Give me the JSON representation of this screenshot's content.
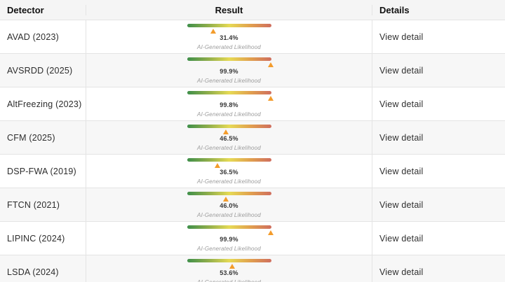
{
  "table": {
    "columns": [
      {
        "key": "detector",
        "label": "Detector"
      },
      {
        "key": "result",
        "label": "Result"
      },
      {
        "key": "details",
        "label": "Details"
      }
    ],
    "result_caption": "AI-Generated Likelihood",
    "details_link_label": "View detail",
    "rows": [
      {
        "detector": "AVAD (2023)",
        "likelihood_pct": 31.4,
        "likelihood_label": "31.4%"
      },
      {
        "detector": "AVSRDD (2025)",
        "likelihood_pct": 99.9,
        "likelihood_label": "99.9%"
      },
      {
        "detector": "AltFreezing (2023)",
        "likelihood_pct": 99.8,
        "likelihood_label": "99.8%"
      },
      {
        "detector": "CFM (2025)",
        "likelihood_pct": 46.5,
        "likelihood_label": "46.5%"
      },
      {
        "detector": "DSP-FWA (2019)",
        "likelihood_pct": 36.5,
        "likelihood_label": "36.5%"
      },
      {
        "detector": "FTCN (2021)",
        "likelihood_pct": 46.0,
        "likelihood_label": "46.0%"
      },
      {
        "detector": "LIPINC (2024)",
        "likelihood_pct": 99.9,
        "likelihood_label": "99.9%"
      },
      {
        "detector": "LSDA (2024)",
        "likelihood_pct": 53.6,
        "likelihood_label": "53.6%"
      }
    ]
  },
  "colors": {
    "bar_gradient": [
      "#3f8f4a",
      "#8fae4b",
      "#e6da55",
      "#e1a04e",
      "#cf6e5e"
    ],
    "marker": "#f39c2c",
    "stripe_bg": "#f7f7f7",
    "header_bg": "#f5f5f5",
    "border": "#e4e4e4"
  }
}
